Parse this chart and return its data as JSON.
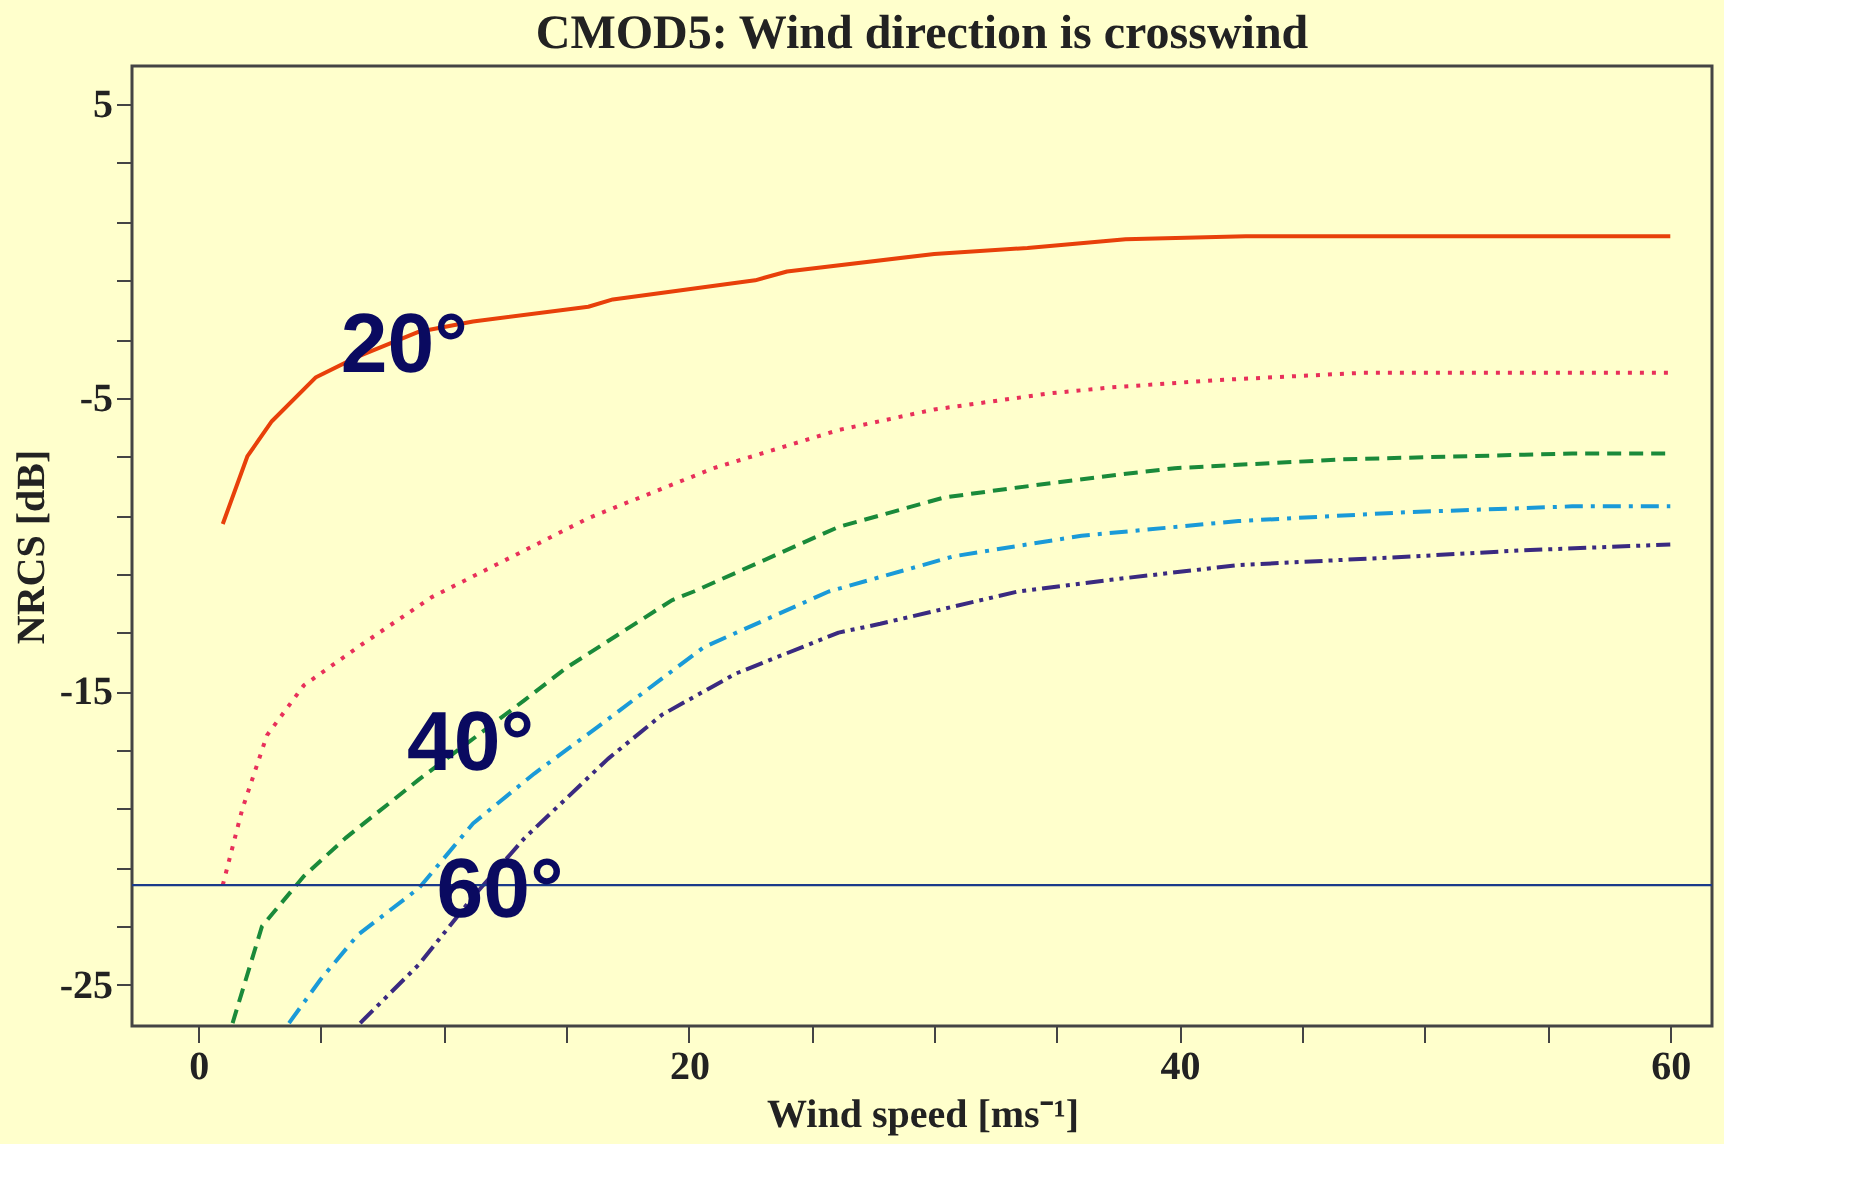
{
  "chart_data": {
    "type": "line",
    "title": "CMOD5: Wind direction is crosswind",
    "xlabel": "Wind speed [ms⁻¹]",
    "ylabel": "NRCS [dB]",
    "xlim": [
      -2.7,
      61.7
    ],
    "ylim": [
      -26.4,
      6.3
    ],
    "xticks": [
      0,
      {
        "value": 5,
        "label": null
      },
      {
        "value": 10,
        "label": null
      },
      {
        "value": 15,
        "label": null
      },
      20,
      {
        "value": 25,
        "label": null
      },
      {
        "value": 30,
        "label": null
      },
      {
        "value": 35,
        "label": null
      },
      40,
      {
        "value": 45,
        "label": null
      },
      {
        "value": 50,
        "label": null
      },
      {
        "value": 55,
        "label": null
      },
      60
    ],
    "yticks": [
      -25,
      {
        "value": -23,
        "label": null
      },
      {
        "value": -21,
        "label": null
      },
      {
        "value": -19,
        "label": null
      },
      {
        "value": -17,
        "label": null
      },
      -15,
      {
        "value": -13,
        "label": null
      },
      {
        "value": -11,
        "label": null
      },
      {
        "value": -9,
        "label": null
      },
      {
        "value": -7,
        "label": null
      },
      -5,
      {
        "value": -3,
        "label": null
      },
      {
        "value": -1,
        "label": null
      },
      {
        "value": 1,
        "label": null
      },
      {
        "value": 3,
        "label": null
      },
      5
    ],
    "grid": false,
    "marker": "none",
    "series": [
      {
        "color": "#e8400a",
        "line_style": "solid",
        "x": [
          1,
          2,
          3,
          4.8,
          6.5,
          9,
          11.2,
          15.9,
          16.9,
          22.7,
          24,
          30,
          33.8,
          37.8,
          42.7,
          60
        ],
        "values": [
          -9.3,
          -7.0,
          -5.8,
          -4.3,
          -3.6,
          -2.75,
          -2.4,
          -1.9,
          -1.65,
          -1.0,
          -0.7,
          -0.1,
          0.1,
          0.4,
          0.5,
          0.5
        ]
      },
      {
        "color": "#e8305a",
        "line_style": "dotted",
        "x": [
          1,
          1.8,
          2.8,
          4.3,
          6.5,
          9.5,
          13.3,
          15.9,
          21,
          26.1,
          30,
          34.7,
          37.2,
          41.5,
          47.5,
          60
        ],
        "values": [
          -21.6,
          -19,
          -16.5,
          -14.8,
          -13.5,
          -11.8,
          -10.2,
          -9.1,
          -7.4,
          -6.1,
          -5.4,
          -4.85,
          -4.65,
          -4.4,
          -4.15,
          -4.15
        ]
      },
      {
        "color": "#1a8a3a",
        "line_style": "dashed",
        "x": [
          1.4,
          2.6,
          4.3,
          6,
          9,
          13.3,
          15,
          19.3,
          20.2,
          26.1,
          30.4,
          33,
          37.7,
          39.8,
          46.6,
          56,
          60
        ],
        "values": [
          -26.3,
          -23,
          -21.3,
          -20,
          -18,
          -15.3,
          -14.2,
          -11.9,
          -11.6,
          -9.4,
          -8.4,
          -8.1,
          -7.6,
          -7.4,
          -7.1,
          -6.9,
          -6.9
        ]
      },
      {
        "color": "#1a9ad8",
        "line_style": "dashdot",
        "x": [
          3.7,
          5,
          6.5,
          9,
          11.2,
          13.7,
          16.3,
          20.6,
          25.7,
          30.8,
          36,
          42.4,
          49.2,
          56,
          60
        ],
        "values": [
          -26.3,
          -24.8,
          -23.3,
          -21.7,
          -19.5,
          -17.8,
          -16.2,
          -13.5,
          -11.6,
          -10.4,
          -9.7,
          -9.2,
          -8.9,
          -8.7,
          -8.7
        ]
      },
      {
        "color": "#3a2a80",
        "line_style": "dashdotdot",
        "x": [
          6.6,
          9,
          11.2,
          13.3,
          16.7,
          18.9,
          21.9,
          26.1,
          27.8,
          33.4,
          37.2,
          42.4,
          49.6,
          53.9,
          60
        ],
        "values": [
          -26.3,
          -24.3,
          -22,
          -20,
          -17.3,
          -15.8,
          -14.4,
          -13,
          -12.7,
          -11.6,
          -11.2,
          -10.7,
          -10.4,
          -10.2,
          -10.0
        ]
      }
    ],
    "ref_lines": [
      {
        "axis": "y",
        "value": -21.6,
        "color": "#1a3a8a"
      }
    ],
    "annotations": [
      {
        "text": "20°",
        "x": 8.4,
        "y": -3.25
      },
      {
        "text": "40°",
        "x": 11.1,
        "y": -16.8
      },
      {
        "text": "60°",
        "x": 12.3,
        "y": -21.8
      }
    ]
  }
}
